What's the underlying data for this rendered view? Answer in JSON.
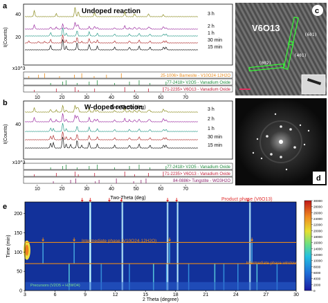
{
  "figure": {
    "panel_letters": [
      "a",
      "b",
      "c",
      "d",
      "e"
    ],
    "colors": {
      "h3": "#8c8c20",
      "h2": "#9b2ca0",
      "h1": "#2c9b8a",
      "m30": "#b03030",
      "m15": "#111111",
      "ref_orange": "#e88a1a",
      "ref_green": "#1b8a3a",
      "ref_red": "#c0203a",
      "ref_purple": "#8a1f6a"
    }
  },
  "panel_a": {
    "title": "Undoped reaction",
    "ylabel": "I(Counts)",
    "xlabel": "Two-Theta (deg)",
    "scale_note": "x10^3",
    "curve_labels": [
      "3 h",
      "2 h",
      "1 h",
      "30 min",
      "15 min"
    ],
    "yticks": [
      "40",
      "20"
    ],
    "xticks": [
      "10",
      "20",
      "30",
      "40",
      "50",
      "60",
      "70"
    ],
    "references": [
      {
        "text": "25-1006> Barnesite - V10O24·12H2O",
        "color": "#e88a1a"
      },
      {
        "text": "77-2418> V2O5 - Vanadium Oxide",
        "color": "#1b8a3a"
      },
      {
        "text": "71-2235> V6O13 - Vanadium Oxide",
        "color": "#c0203a"
      }
    ]
  },
  "panel_b": {
    "title": "W-doped reaction",
    "ylabel": "I(Counts)",
    "xlabel": "Two-Theta (deg)",
    "scale_note": "x10^3",
    "curve_labels": [
      "3 h",
      "2 h",
      "1 h",
      "30 min",
      "15 min"
    ],
    "yticks": [
      "40"
    ],
    "xticks": [
      "10",
      "20",
      "30",
      "40",
      "50",
      "60",
      "70"
    ],
    "references": [
      {
        "text": "77-2418> V2O5 - Vanadium Oxide",
        "color": "#1b8a3a"
      },
      {
        "text": "71-2235> V6O13 - Vanadium Oxide",
        "color": "#c0203a"
      },
      {
        "text": "84-0886> Tungstite - WO3H2O",
        "color": "#8a1f6a"
      }
    ]
  },
  "panel_c": {
    "phase_label": "V6O13",
    "annotations": [
      "(6̄01)",
      "(002)",
      "(401)"
    ]
  },
  "panel_e": {
    "ylabel": "Time (min)",
    "xlabel": "2 Theta (degree)",
    "yticks": [
      "0",
      "50",
      "100",
      "150",
      "200"
    ],
    "xticks": [
      "3",
      "6",
      "9",
      "12",
      "15",
      "18",
      "21",
      "24",
      "27",
      "30"
    ],
    "colorbar_ticks": [
      "0",
      "2000",
      "4000",
      "6000",
      "8000",
      "10000",
      "12000",
      "14000",
      "16000",
      "18000",
      "20000",
      "22000",
      "24000",
      "26000",
      "28000",
      "30000"
    ],
    "product_label": "Product phase (V6O13)",
    "intermediate_label": "Intermediate phase (V10O24·12H2O)",
    "window_label": "Intermediate phase window",
    "precursors_label": "Precursors (V2O5 + H2WO4)",
    "chart_data": {
      "type": "heatmap",
      "xlabel": "2 Theta (degree)",
      "ylabel": "Time (min)",
      "xlim": [
        3,
        30
      ],
      "ylim": [
        0,
        230
      ],
      "colorbar_range": [
        0,
        30000
      ],
      "product_peaks_2theta": [
        8.7,
        9.5,
        11.4,
        12.6,
        17.2,
        18.1,
        25.2
      ],
      "intermediate_peaks_2theta": [
        4.8,
        7.9,
        17.4,
        25.6
      ],
      "intermediate_time_window_min": [
        70,
        125
      ],
      "product_streaks_2theta": [
        9.5,
        12.7,
        17.2,
        18.2,
        25.4
      ],
      "precursor_streaks_2theta": [
        7.4,
        10.6,
        13.4,
        15.8,
        17.1,
        19.3,
        21.9,
        22.8,
        24.2,
        26.1,
        28.1
      ]
    }
  }
}
